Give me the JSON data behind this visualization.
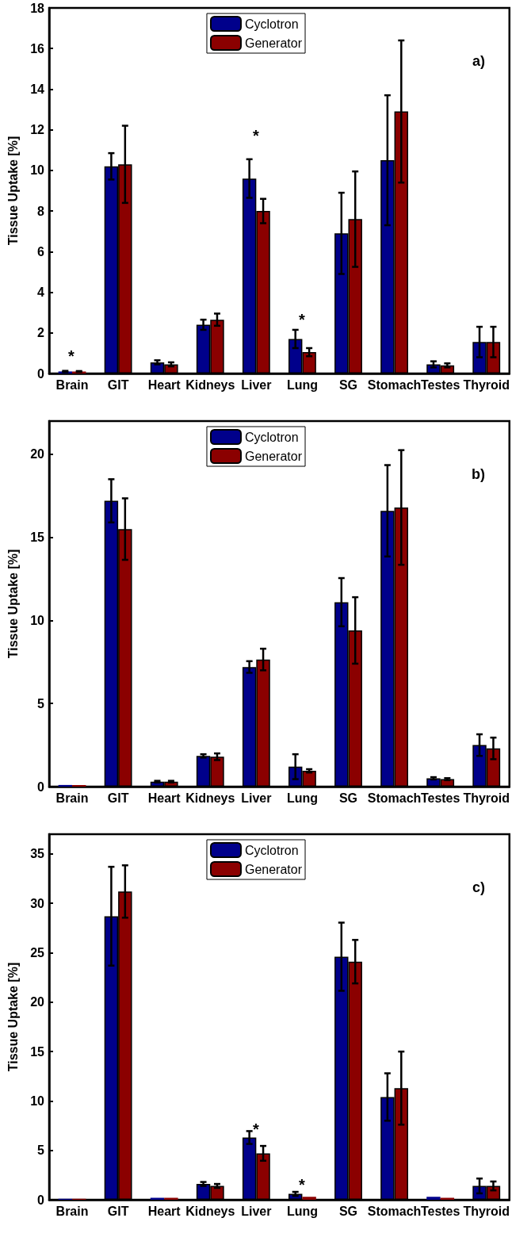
{
  "chart_data": [
    {
      "type": "bar",
      "ylabel": "Tissue Uptake [%]",
      "categories": [
        "Brain",
        "GIT",
        "Heart",
        "Kidneys",
        "Liver",
        "Lung",
        "SG",
        "Stomach",
        "Testes",
        "Thyroid"
      ],
      "series": [
        {
          "name": "Cyclotron",
          "color": "#00008b",
          "values": [
            0.1,
            10.2,
            0.55,
            2.4,
            9.6,
            1.7,
            6.9,
            10.5,
            0.45,
            1.55
          ],
          "errors": [
            0.03,
            0.65,
            0.1,
            0.25,
            0.95,
            0.45,
            2.0,
            3.2,
            0.15,
            0.75
          ]
        },
        {
          "name": "Generator",
          "color": "#8b0000",
          "values": [
            0.1,
            10.3,
            0.45,
            2.65,
            8.0,
            1.05,
            7.6,
            12.9,
            0.4,
            1.55
          ],
          "errors": [
            0.02,
            1.9,
            0.1,
            0.3,
            0.6,
            0.2,
            2.35,
            3.5,
            0.1,
            0.75
          ]
        }
      ],
      "ylim": [
        0,
        18
      ],
      "yticks": [
        0,
        2,
        4,
        6,
        8,
        10,
        12,
        14,
        16,
        18
      ],
      "grid": false,
      "legend": "top",
      "annotations": [
        "a)",
        "*",
        "*",
        "*"
      ]
    },
    {
      "type": "bar",
      "ylabel": "Tissue Uptake [%]",
      "categories": [
        "Brain",
        "GIT",
        "Heart",
        "Kidneys",
        "Liver",
        "Lung",
        "SG",
        "Stomach",
        "Testes",
        "Thyroid"
      ],
      "series": [
        {
          "name": "Cyclotron",
          "color": "#00008b",
          "values": [
            0.1,
            17.2,
            0.3,
            1.85,
            7.2,
            1.2,
            11.1,
            16.6,
            0.5,
            2.5
          ],
          "errors": [
            null,
            1.3,
            0.05,
            0.1,
            0.35,
            0.75,
            1.45,
            2.75,
            0.07,
            0.65
          ]
        },
        {
          "name": "Generator",
          "color": "#8b0000",
          "values": [
            0.1,
            15.5,
            0.3,
            1.8,
            7.65,
            0.95,
            9.4,
            16.8,
            0.45,
            2.3
          ],
          "errors": [
            null,
            1.85,
            0.05,
            0.2,
            0.65,
            0.1,
            2.0,
            3.45,
            0.06,
            0.65
          ]
        }
      ],
      "ylim": [
        0,
        22
      ],
      "yticks": [
        0,
        5,
        10,
        15,
        20
      ],
      "grid": false,
      "legend": "top",
      "annotations": [
        "b)"
      ]
    },
    {
      "type": "bar",
      "ylabel": "Tissue Uptake [%]",
      "categories": [
        "Brain",
        "GIT",
        "Heart",
        "Kidneys",
        "Liver",
        "Lung",
        "SG",
        "Stomach",
        "Testes",
        "Thyroid"
      ],
      "series": [
        {
          "name": "Cyclotron",
          "color": "#00008b",
          "values": [
            0.1,
            28.7,
            0.2,
            1.6,
            6.3,
            0.6,
            24.6,
            10.4,
            0.3,
            1.4
          ],
          "errors": [
            null,
            5.0,
            null,
            0.2,
            0.65,
            0.2,
            3.45,
            2.4,
            null,
            0.75
          ]
        },
        {
          "name": "Generator",
          "color": "#8b0000",
          "values": [
            0.1,
            31.2,
            0.2,
            1.4,
            4.7,
            0.3,
            24.1,
            11.3,
            0.2,
            1.4
          ],
          "errors": [
            null,
            2.65,
            null,
            0.2,
            0.75,
            null,
            2.2,
            3.7,
            null,
            0.45
          ]
        }
      ],
      "ylim": [
        0,
        37
      ],
      "yticks": [
        0,
        5,
        10,
        15,
        20,
        25,
        30,
        35
      ],
      "grid": false,
      "legend": "top",
      "annotations": [
        "c)",
        "*",
        "*"
      ]
    }
  ]
}
